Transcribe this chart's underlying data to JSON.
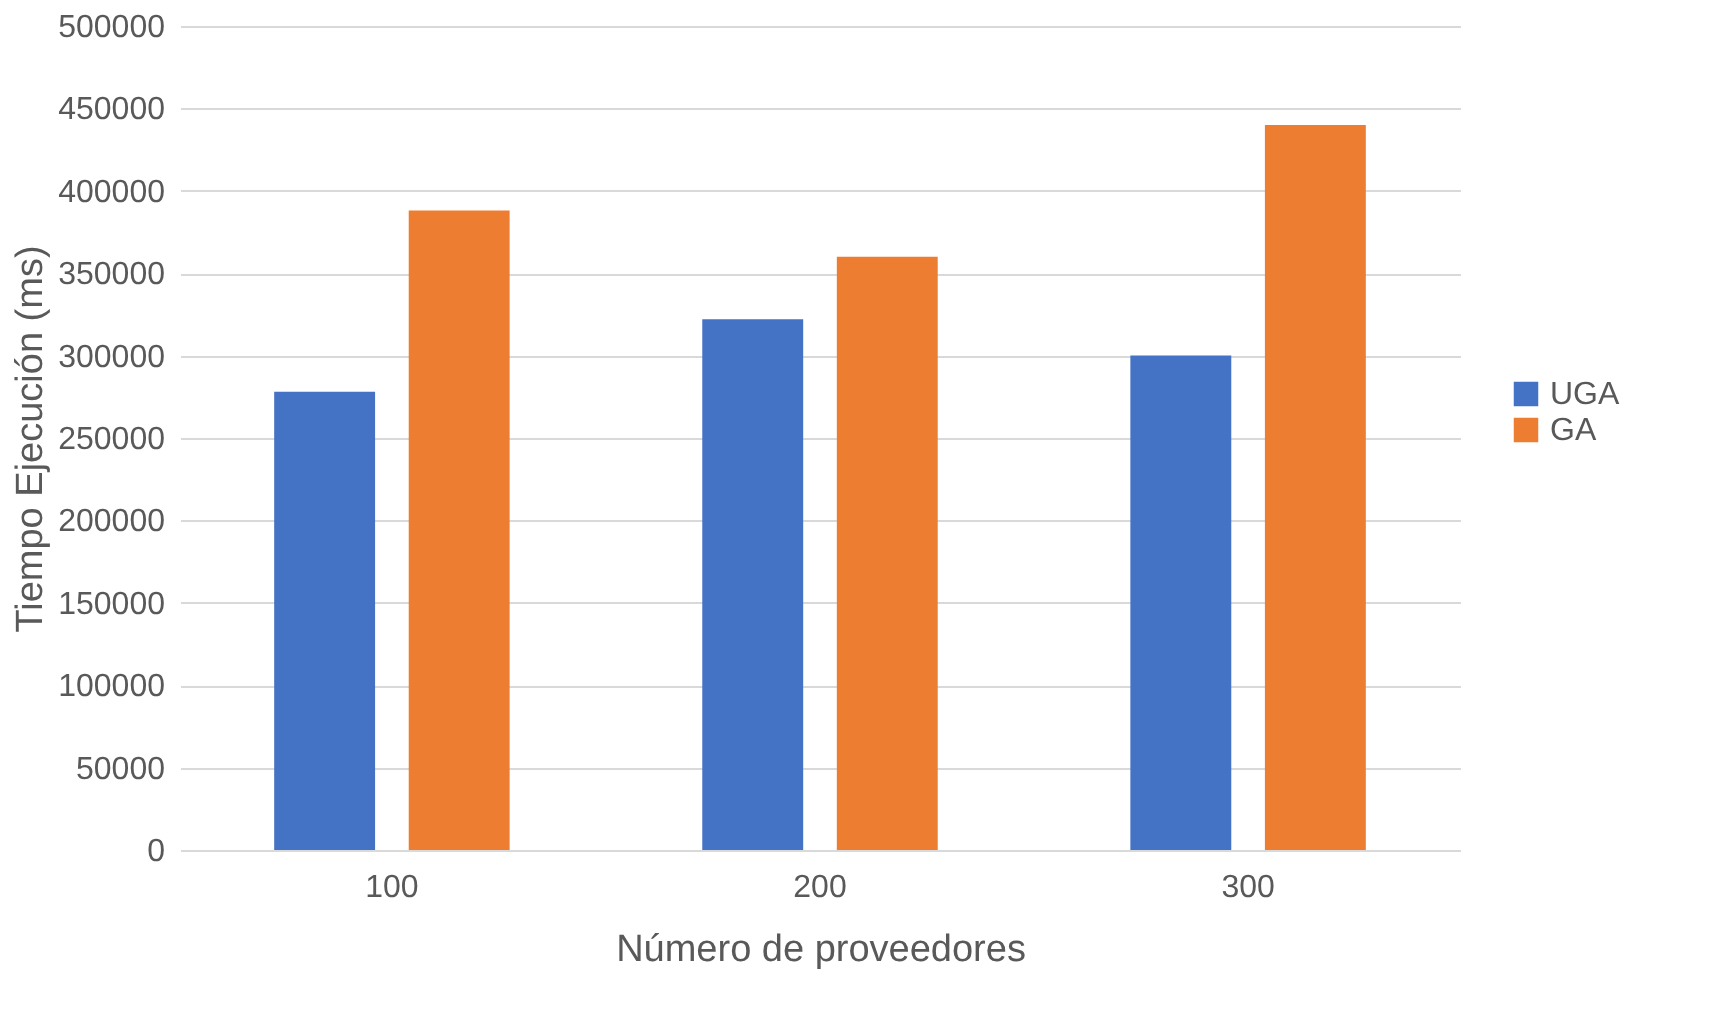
{
  "chart_data": {
    "type": "bar",
    "xlabel": "Número de proveedores",
    "ylabel": "Tiempo Ejecución (ms)",
    "categories": [
      "100",
      "200",
      "300"
    ],
    "series": [
      {
        "name": "UGA",
        "color": "#4472c4",
        "values": [
          278000,
          322000,
          300000
        ]
      },
      {
        "name": "GA",
        "color": "#ed7d31",
        "values": [
          388000,
          360000,
          440000
        ]
      }
    ],
    "ylim": [
      0,
      500000
    ],
    "yticks": [
      0,
      50000,
      100000,
      150000,
      200000,
      250000,
      300000,
      350000,
      400000,
      450000,
      500000
    ],
    "grid": "y",
    "legend": "right"
  }
}
